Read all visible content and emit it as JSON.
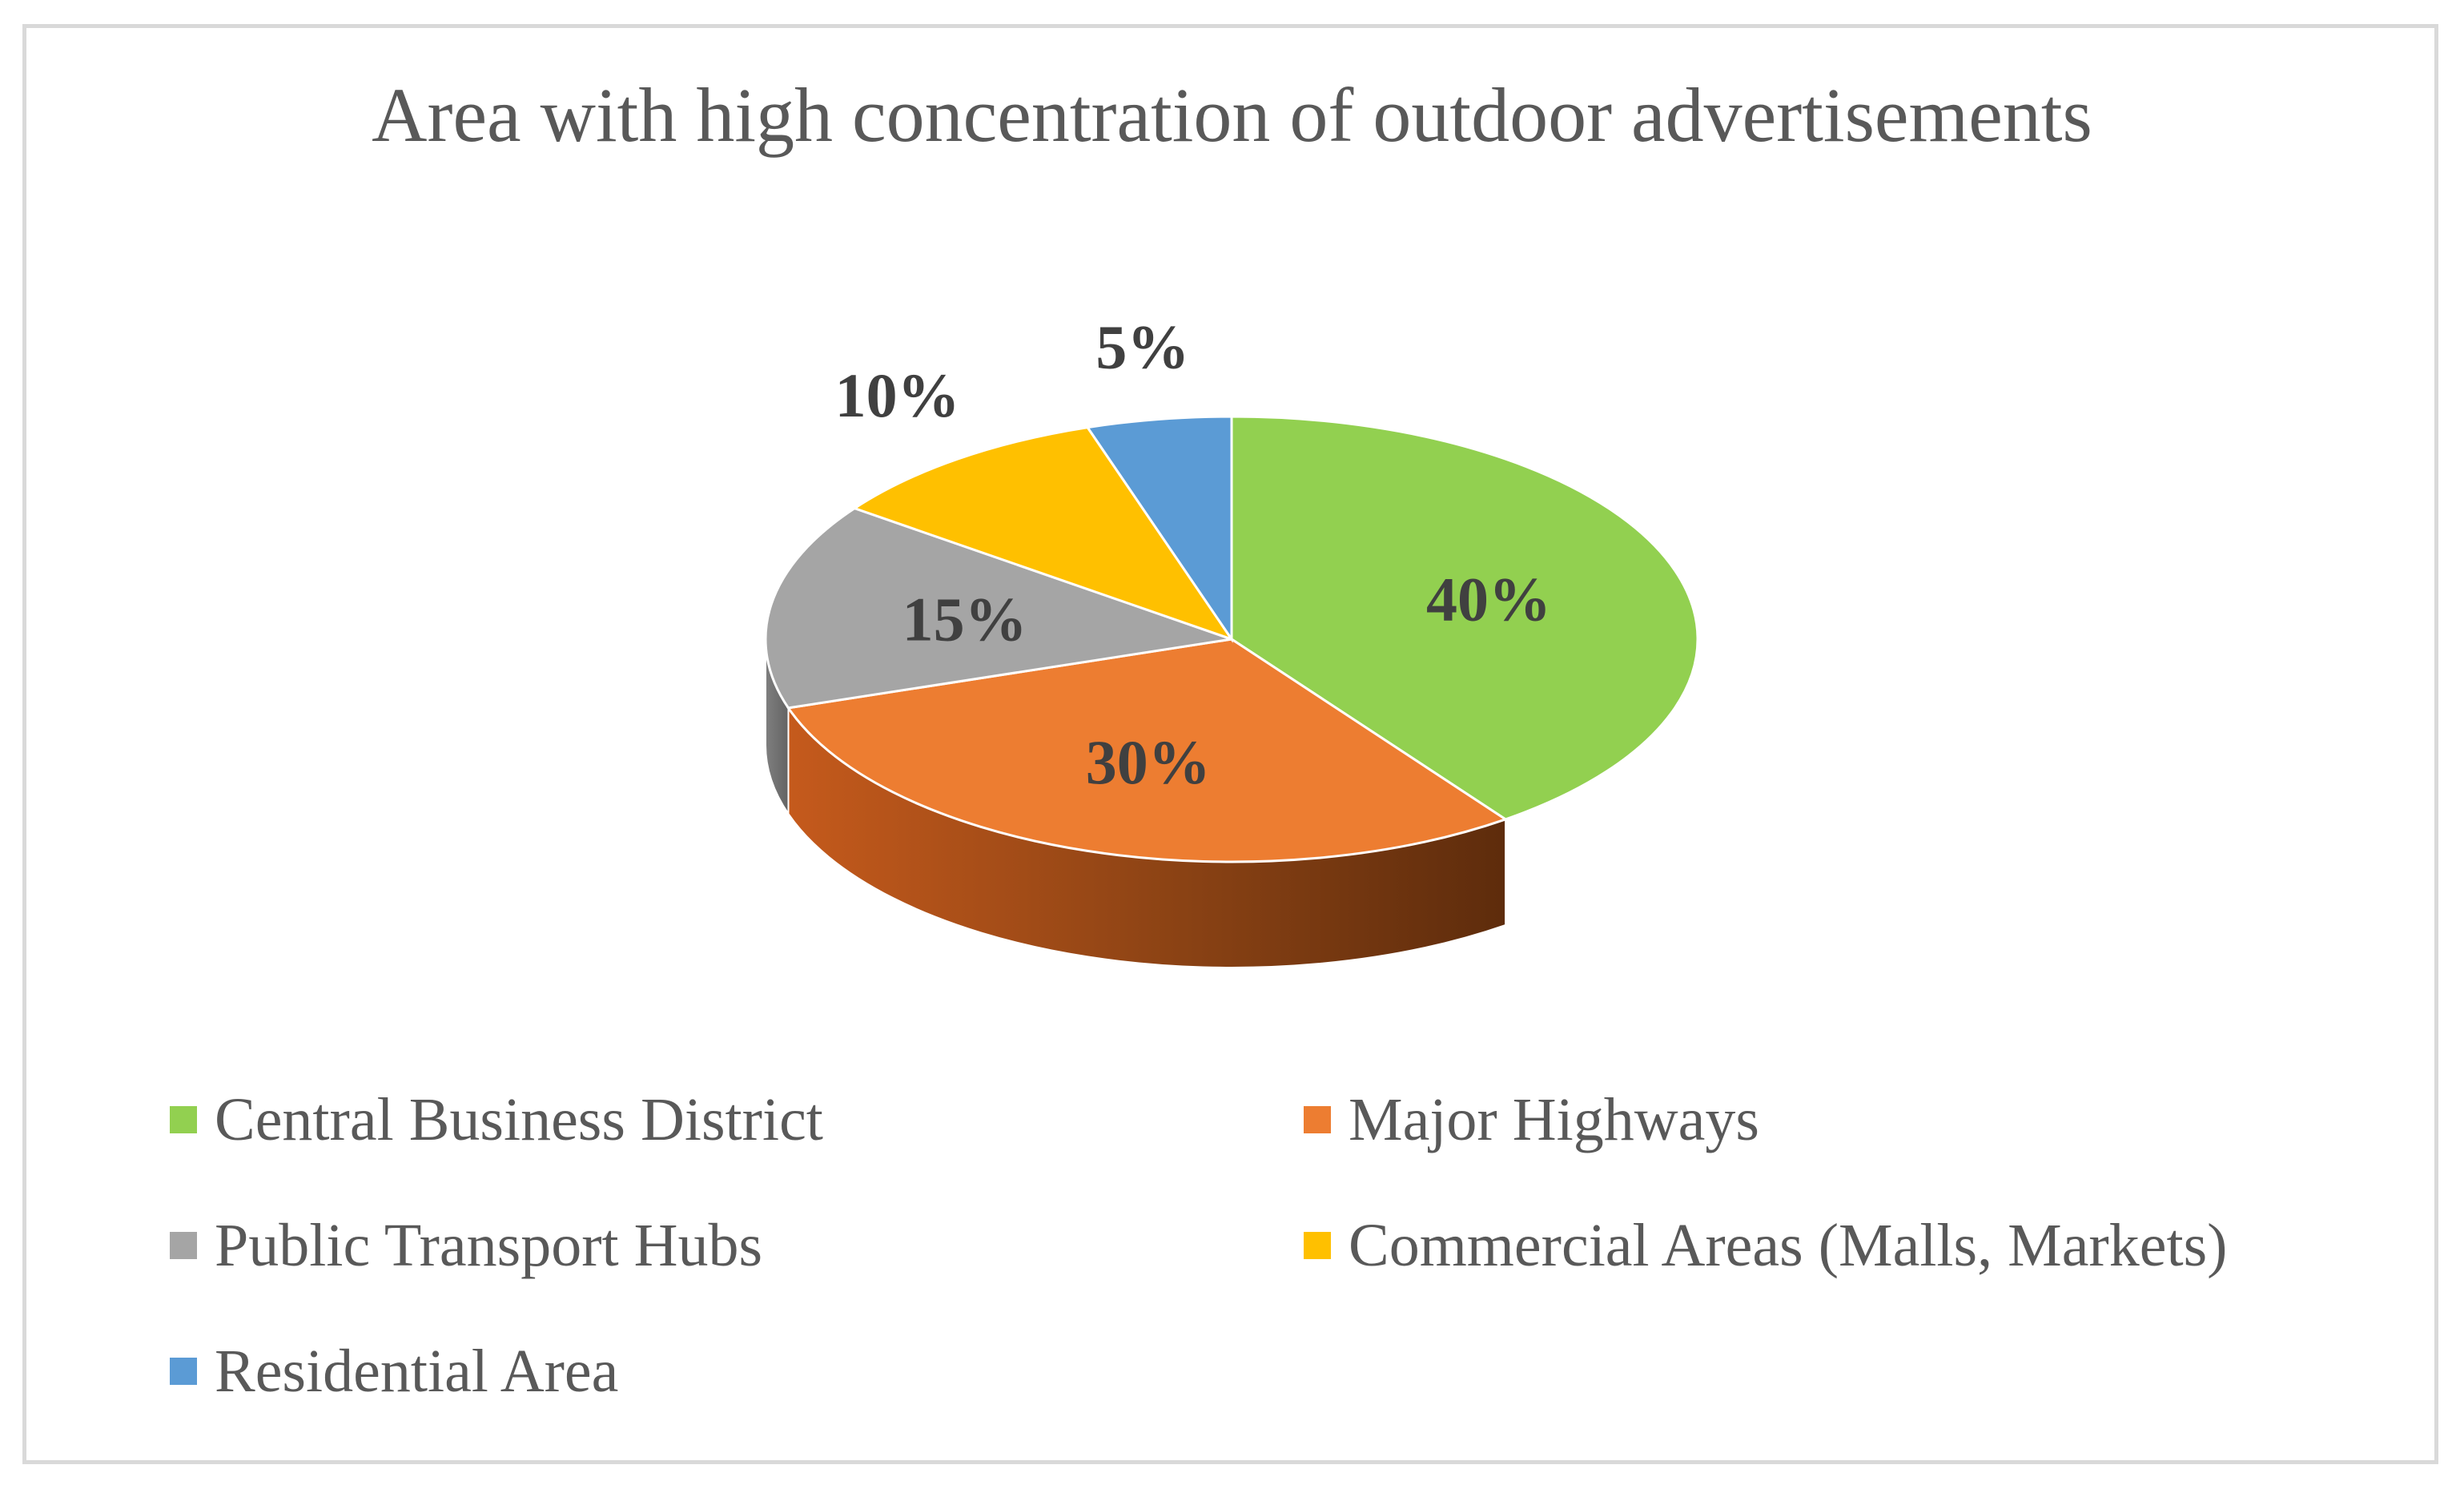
{
  "chart_data": {
    "type": "pie",
    "title": "Area with high concentration of outdoor advertisements",
    "categories": [
      "Central Business District",
      "Major Highways",
      "Public Transport Hubs",
      "Commercial Areas (Malls, Markets)",
      "Residential Area"
    ],
    "values": [
      40,
      30,
      15,
      10,
      5
    ],
    "data_labels": [
      "40%",
      "30%",
      "15%",
      "10%",
      "5%"
    ],
    "colors": [
      "#92d050",
      "#ed7d31",
      "#a5a5a5",
      "#ffc000",
      "#5b9bd5"
    ],
    "style": "3d",
    "legend_position": "bottom"
  }
}
